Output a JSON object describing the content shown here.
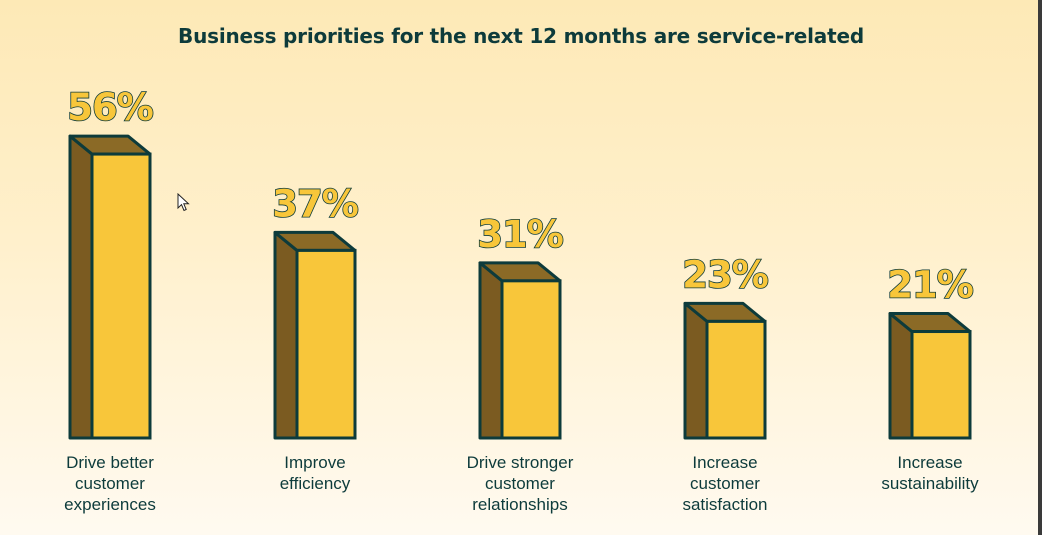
{
  "colors": {
    "bar_front": "#f8c63a",
    "bar_side": "#7b5b21",
    "bar_top": "#8b6a26",
    "outline": "#0d3b3b",
    "title": "#0d3b3b"
  },
  "chart_data": {
    "type": "bar",
    "title": "Business priorities for the next 12 months are service-related",
    "categories": [
      "Drive better\ncustomer\nexperiences",
      "Improve\nefficiency",
      "Drive stronger\ncustomer\nrelationships",
      "Increase\ncustomer\nsatisfaction",
      "Increase\nsustainability"
    ],
    "values": [
      56,
      37,
      31,
      23,
      21
    ],
    "value_labels": [
      "56%",
      "37%",
      "31%",
      "23%",
      "21%"
    ],
    "unit": "%",
    "ylim": [
      0,
      56
    ],
    "grid": false,
    "legend": "none"
  },
  "cursor": "arrow-cursor-icon"
}
